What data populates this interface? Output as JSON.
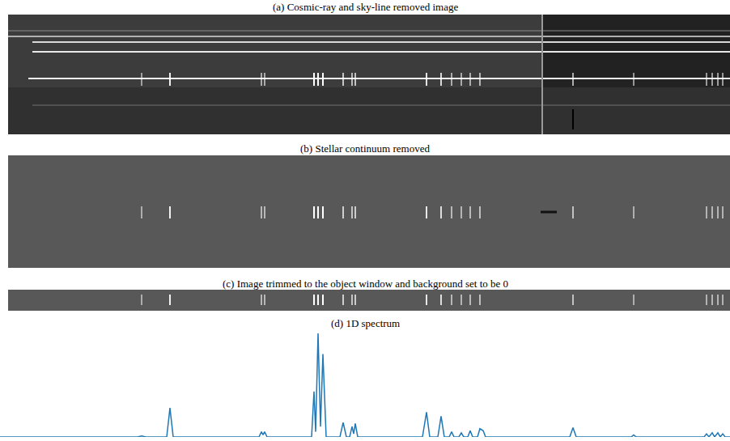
{
  "panels": [
    {
      "title": "(a) Cosmic-ray and sky-line removed image"
    },
    {
      "title": "(b) Stellar continuum removed"
    },
    {
      "title": "(c) Image trimmed to the object window and background set to be 0"
    }
  ],
  "chart_data": {
    "type": "line",
    "title": "(d) 1D spectrum",
    "x": [
      0,
      170,
      175,
      180,
      206,
      210,
      214,
      320,
      323,
      325,
      327,
      330,
      385,
      388,
      390,
      393,
      396,
      399,
      403,
      420,
      424,
      428,
      432,
      435,
      437,
      439,
      442,
      522,
      527,
      531,
      541,
      545,
      549,
      555,
      558,
      561,
      567,
      570,
      573,
      578,
      581,
      584,
      590,
      593,
      597,
      600,
      704,
      708,
      712,
      780,
      783,
      786,
      870,
      873,
      876,
      880,
      883,
      887,
      890,
      893,
      896,
      902
    ],
    "values": [
      0,
      0,
      0.01,
      0,
      0,
      0.28,
      0,
      0,
      0.05,
      0.02,
      0.05,
      0,
      0,
      0.44,
      0.05,
      1.0,
      0.1,
      0.8,
      0,
      0,
      0.14,
      0,
      0,
      0.1,
      0.03,
      0.13,
      0,
      0,
      0.24,
      0,
      0,
      0.2,
      0,
      0,
      0.05,
      0,
      0,
      0.04,
      0,
      0,
      0.06,
      0,
      0,
      0.08,
      0.06,
      0,
      0,
      0.09,
      0,
      0,
      0.02,
      0,
      0,
      0.03,
      0,
      0.04,
      0,
      0.04,
      0,
      0.03,
      0,
      0
    ],
    "color": "#1f77b4",
    "xlim": [
      0,
      902
    ],
    "ylim": [
      0,
      1
    ],
    "xticks": [],
    "yticks": [],
    "tick_labels": false,
    "grid": false
  }
}
